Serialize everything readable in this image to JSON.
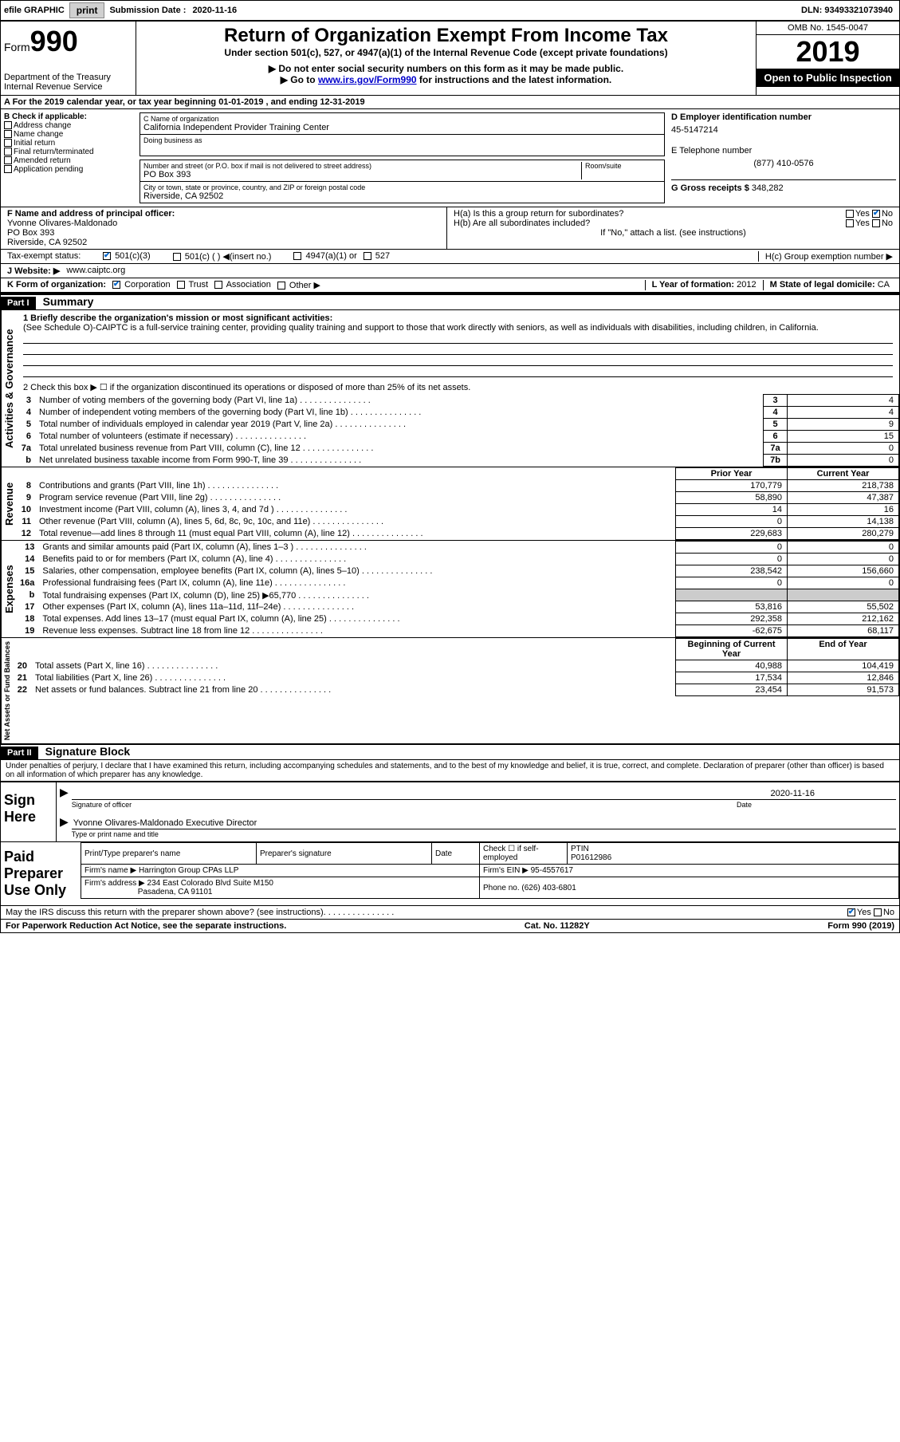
{
  "topbar": {
    "efile": "efile GRAPHIC",
    "print": "print",
    "sub_label": "Submission Date :",
    "sub_date": "2020-11-16",
    "dln": "DLN: 93493321073940"
  },
  "header": {
    "form_word": "Form",
    "form_num": "990",
    "dept": "Department of the Treasury",
    "irs": "Internal Revenue Service",
    "title": "Return of Organization Exempt From Income Tax",
    "sub1": "Under section 501(c), 527, or 4947(a)(1) of the Internal Revenue Code (except private foundations)",
    "sub2": "▶ Do not enter social security numbers on this form as it may be made public.",
    "sub3_pre": "▶ Go to ",
    "sub3_link": "www.irs.gov/Form990",
    "sub3_post": " for instructions and the latest information.",
    "omb": "OMB No. 1545-0047",
    "year": "2019",
    "open": "Open to Public Inspection"
  },
  "row_a": "A For the 2019 calendar year, or tax year beginning 01-01-2019    , and ending 12-31-2019",
  "col_b": {
    "label": "B Check if applicable:",
    "items": [
      "Address change",
      "Name change",
      "Initial return",
      "Final return/terminated",
      "Amended return",
      "Application pending"
    ]
  },
  "col_c": {
    "name_label": "C Name of organization",
    "name": "California Independent Provider Training Center",
    "dba_label": "Doing business as",
    "dba": "",
    "addr_label": "Number and street (or P.O. box if mail is not delivered to street address)",
    "room_label": "Room/suite",
    "addr": "PO Box 393",
    "city_label": "City or town, state or province, country, and ZIP or foreign postal code",
    "city": "Riverside, CA  92502"
  },
  "col_d": {
    "ein_label": "D Employer identification number",
    "ein": "45-5147214",
    "phone_label": "E Telephone number",
    "phone": "(877) 410-0576",
    "gross_label": "G Gross receipts $",
    "gross": "348,282"
  },
  "f": {
    "label": "F  Name and address of principal officer:",
    "name": "Yvonne Olivares-Maldonado",
    "addr1": "PO Box 393",
    "addr2": "Riverside, CA  92502"
  },
  "h": {
    "a": "H(a)  Is this a group return for subordinates?",
    "b": "H(b)  Are all subordinates included?",
    "b_note": "If \"No,\" attach a list. (see instructions)",
    "c": "H(c)  Group exemption number ▶"
  },
  "tax_exempt": {
    "label": "Tax-exempt status:",
    "opt1": "501(c)(3)",
    "opt2": "501(c) (   ) ◀(insert no.)",
    "opt3": "4947(a)(1) or",
    "opt4": "527"
  },
  "website": {
    "label": "J Website: ▶",
    "value": "www.caiptc.org"
  },
  "k": {
    "label": "K Form of organization:",
    "opts": [
      "Corporation",
      "Trust",
      "Association",
      "Other ▶"
    ]
  },
  "l": {
    "label": "L Year of formation:",
    "value": "2012"
  },
  "m": {
    "label": "M State of legal domicile:",
    "value": "CA"
  },
  "part1": {
    "header": "Part I",
    "title": "Summary"
  },
  "summary": {
    "line1_label": "1  Briefly describe the organization's mission or most significant activities:",
    "line1_text": "(See Schedule O)-CAIPTC is a full-service training center, providing quality training and support to those that work directly with seniors, as well as individuals with disabilities, including children, in California.",
    "line2": "2    Check this box ▶ ☐  if the organization discontinued its operations or disposed of more than 25% of its net assets."
  },
  "governance_rows": [
    {
      "n": "3",
      "t": "Number of voting members of the governing body (Part VI, line 1a)",
      "cn": "3",
      "v": "4"
    },
    {
      "n": "4",
      "t": "Number of independent voting members of the governing body (Part VI, line 1b)",
      "cn": "4",
      "v": "4"
    },
    {
      "n": "5",
      "t": "Total number of individuals employed in calendar year 2019 (Part V, line 2a)",
      "cn": "5",
      "v": "9"
    },
    {
      "n": "6",
      "t": "Total number of volunteers (estimate if necessary)",
      "cn": "6",
      "v": "15"
    },
    {
      "n": "7a",
      "t": "Total unrelated business revenue from Part VIII, column (C), line 12",
      "cn": "7a",
      "v": "0"
    },
    {
      "n": "b",
      "t": "Net unrelated business taxable income from Form 990-T, line 39",
      "cn": "7b",
      "v": "0"
    }
  ],
  "col_headers": {
    "prior": "Prior Year",
    "current": "Current Year"
  },
  "revenue_rows": [
    {
      "n": "8",
      "t": "Contributions and grants (Part VIII, line 1h)",
      "p": "170,779",
      "c": "218,738"
    },
    {
      "n": "9",
      "t": "Program service revenue (Part VIII, line 2g)",
      "p": "58,890",
      "c": "47,387"
    },
    {
      "n": "10",
      "t": "Investment income (Part VIII, column (A), lines 3, 4, and 7d )",
      "p": "14",
      "c": "16"
    },
    {
      "n": "11",
      "t": "Other revenue (Part VIII, column (A), lines 5, 6d, 8c, 9c, 10c, and 11e)",
      "p": "0",
      "c": "14,138"
    },
    {
      "n": "12",
      "t": "Total revenue—add lines 8 through 11 (must equal Part VIII, column (A), line 12)",
      "p": "229,683",
      "c": "280,279"
    }
  ],
  "expense_rows": [
    {
      "n": "13",
      "t": "Grants and similar amounts paid (Part IX, column (A), lines 1–3 )",
      "p": "0",
      "c": "0"
    },
    {
      "n": "14",
      "t": "Benefits paid to or for members (Part IX, column (A), line 4)",
      "p": "0",
      "c": "0"
    },
    {
      "n": "15",
      "t": "Salaries, other compensation, employee benefits (Part IX, column (A), lines 5–10)",
      "p": "238,542",
      "c": "156,660"
    },
    {
      "n": "16a",
      "t": "Professional fundraising fees (Part IX, column (A), line 11e)",
      "p": "0",
      "c": "0"
    },
    {
      "n": "b",
      "t": "Total fundraising expenses (Part IX, column (D), line 25) ▶65,770",
      "p": "",
      "c": "",
      "shaded": true
    },
    {
      "n": "17",
      "t": "Other expenses (Part IX, column (A), lines 11a–11d, 11f–24e)",
      "p": "53,816",
      "c": "55,502"
    },
    {
      "n": "18",
      "t": "Total expenses. Add lines 13–17 (must equal Part IX, column (A), line 25)",
      "p": "292,358",
      "c": "212,162"
    },
    {
      "n": "19",
      "t": "Revenue less expenses. Subtract line 18 from line 12",
      "p": "-62,675",
      "c": "68,117"
    }
  ],
  "net_headers": {
    "begin": "Beginning of Current Year",
    "end": "End of Year"
  },
  "net_rows": [
    {
      "n": "20",
      "t": "Total assets (Part X, line 16)",
      "p": "40,988",
      "c": "104,419"
    },
    {
      "n": "21",
      "t": "Total liabilities (Part X, line 26)",
      "p": "17,534",
      "c": "12,846"
    },
    {
      "n": "22",
      "t": "Net assets or fund balances. Subtract line 21 from line 20",
      "p": "23,454",
      "c": "91,573"
    }
  ],
  "vert_labels": {
    "gov": "Activities & Governance",
    "rev": "Revenue",
    "exp": "Expenses",
    "net": "Net Assets or Fund Balances"
  },
  "part2": {
    "header": "Part II",
    "title": "Signature Block"
  },
  "sig_text": "Under penalties of perjury, I declare that I have examined this return, including accompanying schedules and statements, and to the best of my knowledge and belief, it is true, correct, and complete. Declaration of preparer (other than officer) is based on all information of which preparer has any knowledge.",
  "sign_here": "Sign Here",
  "sig": {
    "date": "2020-11-16",
    "officer_label": "Signature of officer",
    "date_label": "Date",
    "name": "Yvonne Olivares-Maldonado  Executive Director",
    "name_label": "Type or print name and title"
  },
  "paid": {
    "title": "Paid Preparer Use Only",
    "h1": "Print/Type preparer's name",
    "h2": "Preparer's signature",
    "h3": "Date",
    "check": "Check ☐ if self-employed",
    "ptin_label": "PTIN",
    "ptin": "P01612986",
    "firm_label": "Firm's name    ▶",
    "firm": "Harrington Group CPAs LLP",
    "ein_label": "Firm's EIN ▶",
    "ein": "95-4557617",
    "addr_label": "Firm's address ▶",
    "addr1": "234 East Colorado Blvd Suite M150",
    "addr2": "Pasadena, CA  91101",
    "phone_label": "Phone no.",
    "phone": "(626) 403-6801"
  },
  "discuss": "May the IRS discuss this return with the preparer shown above? (see instructions)",
  "footer": {
    "left": "For Paperwork Reduction Act Notice, see the separate instructions.",
    "center": "Cat. No. 11282Y",
    "right": "Form 990 (2019)"
  }
}
